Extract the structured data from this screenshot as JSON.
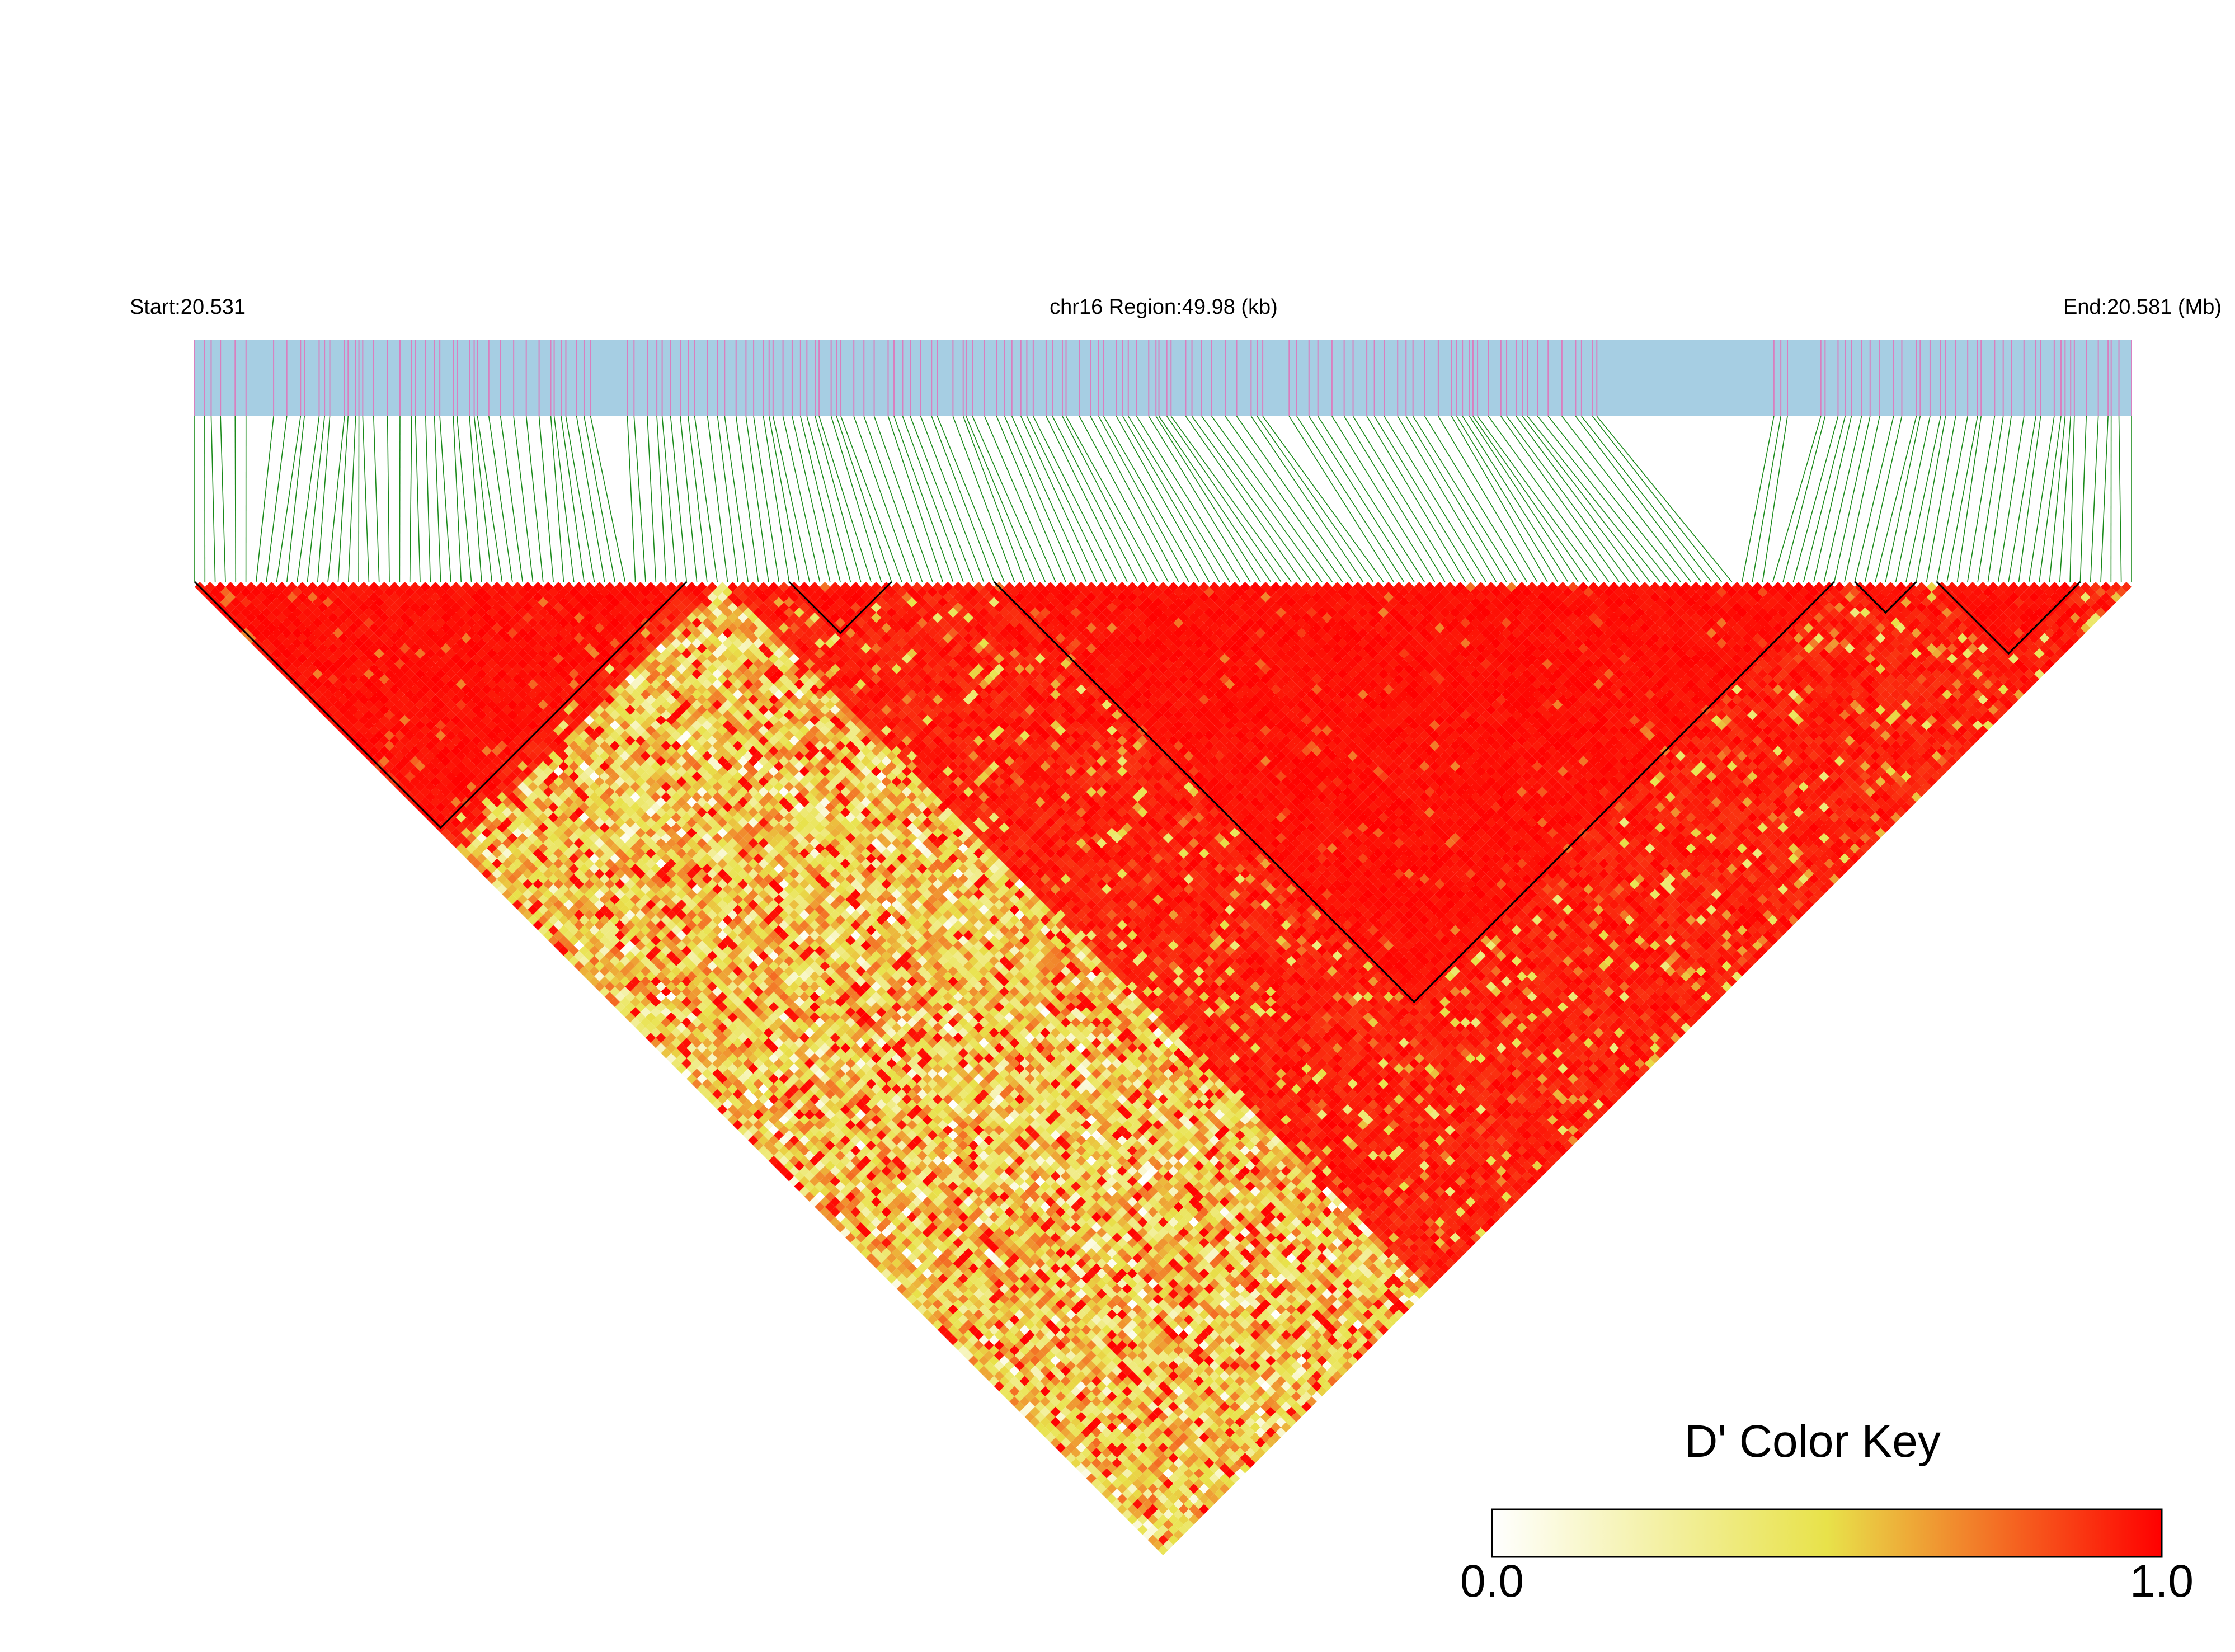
{
  "header": {
    "start": "Start:20.531",
    "region": "chr16 Region:49.98 (kb)",
    "end": "End:20.581 (Mb)"
  },
  "colors": {
    "gene_bar": "#a6cee3",
    "snp_tick": "#d97fbf",
    "connector": "#1a8a1a",
    "block_outline": "#000000",
    "key_low": "#ffffff",
    "key_mid": "#e8e24a",
    "key_high": "#ff0000"
  },
  "chart_data": {
    "type": "heatmap",
    "title": "",
    "chromosome": "chr16",
    "region_start_mb": 20.531,
    "region_end_mb": 20.581,
    "region_length_kb": 49.98,
    "snp_count": 190,
    "measure": "D'",
    "value_range": [
      0.0,
      1.0
    ],
    "blocks": [
      {
        "first_snp": 0,
        "last_snp": 48
      },
      {
        "first_snp": 58,
        "last_snp": 68
      },
      {
        "first_snp": 78,
        "last_snp": 160
      },
      {
        "first_snp": 162,
        "last_snp": 168
      },
      {
        "first_snp": 170,
        "last_snp": 184
      }
    ],
    "color_key": {
      "title": "D' Color Key",
      "min_label": "0.0",
      "max_label": "1.0"
    }
  }
}
